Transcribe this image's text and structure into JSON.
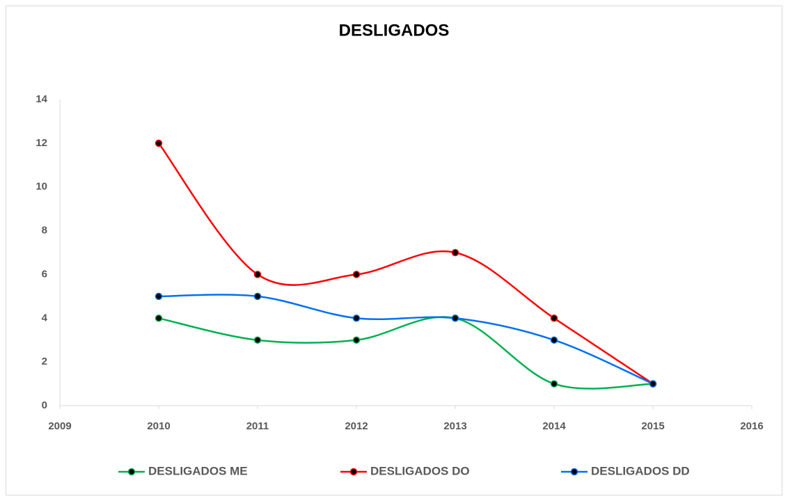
{
  "chart_data": {
    "type": "line",
    "title": "DESLIGADOS",
    "x": [
      2010,
      2011,
      2012,
      2013,
      2014,
      2015
    ],
    "series": [
      {
        "name": "DESLIGADOS ME",
        "color": "#00b050",
        "values": [
          4,
          3,
          3,
          4,
          1,
          1
        ]
      },
      {
        "name": "DESLIGADOS DO",
        "color": "#ff0000",
        "values": [
          12,
          6,
          6,
          7,
          4,
          1
        ]
      },
      {
        "name": "DESLIGADOS DD",
        "color": "#0070f0",
        "values": [
          5,
          5,
          4,
          4,
          3,
          1
        ]
      }
    ],
    "xlim": [
      2009,
      2016
    ],
    "xticks": [
      2009,
      2010,
      2011,
      2012,
      2013,
      2014,
      2015,
      2016
    ],
    "ylim": [
      0,
      14
    ],
    "yticks": [
      0,
      2,
      4,
      6,
      8,
      10,
      12,
      14
    ],
    "grid": false,
    "smooth": true,
    "legend": "bottom"
  }
}
